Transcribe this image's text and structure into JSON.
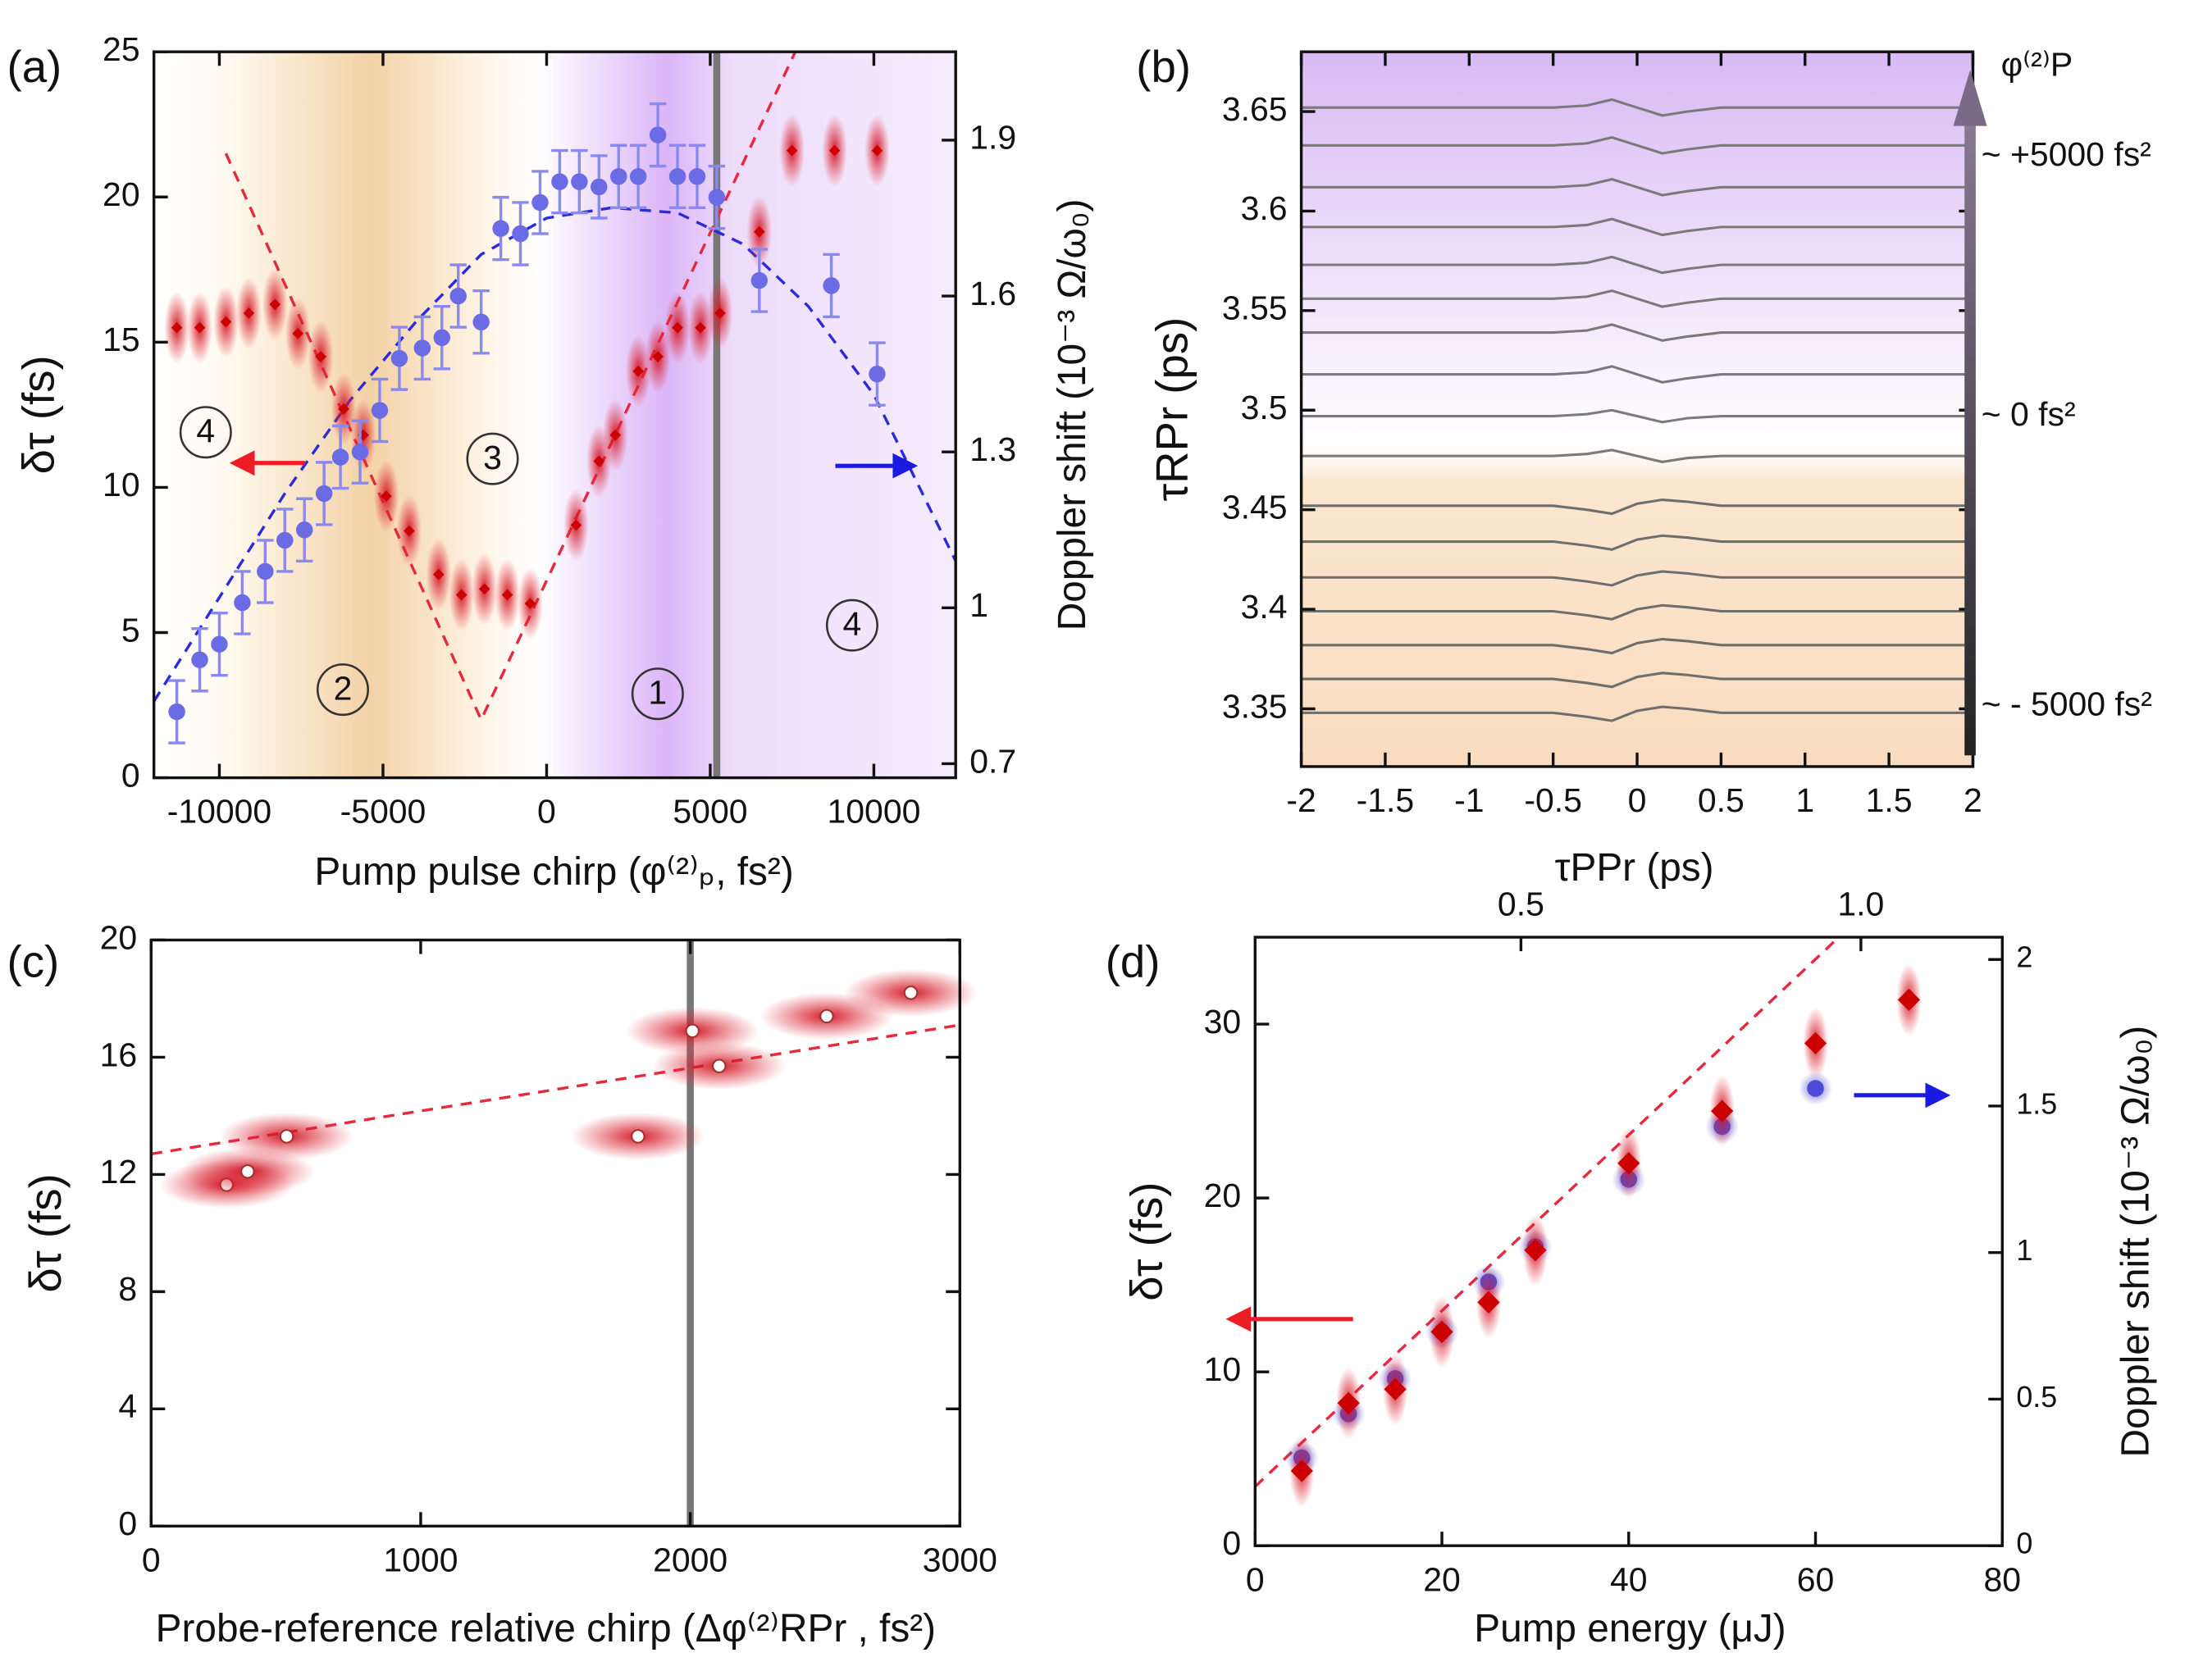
{
  "chart_data": [
    {
      "type": "scatter",
      "label": "(a)",
      "xlabel": "Pump pulse chirp (φ⁽²⁾ₚ, fs²)",
      "ylabel": "δτ (fs)",
      "y2label": "Doppler shift (10⁻³ Ω/ω₀)",
      "xlim": [
        -12000,
        12500
      ],
      "ylim": [
        0,
        25
      ],
      "y2lim": [
        0.673,
        2.07
      ],
      "xticks": [
        -10000,
        -5000,
        0,
        5000,
        10000
      ],
      "yticks": [
        0,
        5,
        10,
        15,
        20,
        25
      ],
      "y2ticks": [
        0.7,
        1,
        1.3,
        1.6,
        1.9
      ],
      "vline": 5200,
      "annotations": [
        "4",
        "2",
        "3",
        "1",
        "4"
      ],
      "series": [
        {
          "marker": "line",
          "dash": true,
          "color": "#e8283c",
          "x": [
            -9800,
            -2000,
            7600
          ],
          "values": [
            21.5,
            2,
            25
          ]
        },
        {
          "marker": "line",
          "dash": true,
          "color": "#2b2bdd",
          "axis": "y2",
          "x": [
            -12000,
            -10000,
            -8000,
            -6000,
            -4000,
            -2000,
            0,
            2000,
            4000,
            6000,
            8000,
            10000,
            12500
          ],
          "values": [
            0.82,
            1.02,
            1.22,
            1.4,
            1.55,
            1.68,
            1.75,
            1.77,
            1.76,
            1.7,
            1.58,
            1.41,
            1.09
          ]
        },
        {
          "marker": "diamond",
          "glow": "vertical",
          "color": "#cc0000",
          "x": [
            -11300,
            -10600,
            -9800,
            -9100,
            -8300,
            -7600,
            -6900,
            -6200,
            -5600,
            -4900,
            -4200,
            -3300,
            -2600,
            -1900,
            -1200,
            -500,
            900,
            1600,
            2100,
            2800,
            3400,
            4000,
            4700,
            5300,
            6500,
            7500,
            8800,
            10100
          ],
          "values": [
            15.5,
            15.5,
            15.7,
            16,
            16.3,
            15.3,
            14.5,
            12.7,
            11.8,
            9.7,
            8.5,
            7,
            6.3,
            6.5,
            6.3,
            6,
            8.7,
            10.9,
            11.8,
            14,
            14.5,
            15.5,
            15.5,
            16,
            18.8,
            21.6,
            21.6,
            21.6
          ]
        },
        {
          "marker": "circle",
          "color": "#6b6be6",
          "axis": "y2",
          "x": [
            -11300,
            -10600,
            -10000,
            -9300,
            -8600,
            -8000,
            -7400,
            -6800,
            -6300,
            -5700,
            -5100,
            -4500,
            -3800,
            -3200,
            -2700,
            -2000,
            -1400,
            -800,
            -200,
            400,
            1000,
            1600,
            2200,
            2800,
            3400,
            4000,
            4600,
            5200,
            6500,
            8700,
            10100
          ],
          "values": [
            0.8,
            0.9,
            0.93,
            1.01,
            1.07,
            1.13,
            1.15,
            1.22,
            1.29,
            1.3,
            1.38,
            1.48,
            1.5,
            1.52,
            1.6,
            1.55,
            1.73,
            1.72,
            1.78,
            1.82,
            1.82,
            1.81,
            1.83,
            1.83,
            1.91,
            1.83,
            1.83,
            1.79,
            1.63,
            1.62,
            1.45
          ],
          "errors": [
            0.06,
            0.06,
            0.06,
            0.06,
            0.06,
            0.06,
            0.06,
            0.06,
            0.06,
            0.06,
            0.06,
            0.06,
            0.06,
            0.06,
            0.06,
            0.06,
            0.06,
            0.06,
            0.06,
            0.06,
            0.06,
            0.06,
            0.06,
            0.06,
            0.06,
            0.06,
            0.06,
            0.06,
            0.06,
            0.06,
            0.06
          ]
        }
      ]
    },
    {
      "type": "line",
      "label": "(b)",
      "xlabel": "τPPr (ps)",
      "ylabel": "τRPr (ps)",
      "xlim": [
        -2,
        2
      ],
      "ylim": [
        3.321,
        3.68
      ],
      "xticks": [
        -2,
        -1.5,
        -1,
        -0.5,
        0,
        0.5,
        1,
        1.5,
        2
      ],
      "yticks": [
        3.35,
        3.4,
        3.45,
        3.5,
        3.55,
        3.6,
        3.65
      ],
      "annotations": [
        "φ⁽²⁾P",
        "~ +5000 fs²",
        "~ 0 fs²",
        "~ - 5000 fs²"
      ],
      "x": [
        -2,
        -1,
        -0.5,
        -0.3,
        -0.15,
        0,
        0.15,
        0.3,
        0.5,
        1,
        2
      ],
      "series": [
        {
          "color": "#7a7a7a",
          "values": [
            3.652,
            3.652,
            3.652,
            3.653,
            3.656,
            3.652,
            3.648,
            3.65,
            3.652,
            3.652,
            3.652
          ]
        },
        {
          "color": "#7a7a7a",
          "values": [
            3.633,
            3.633,
            3.633,
            3.634,
            3.637,
            3.633,
            3.629,
            3.631,
            3.633,
            3.633,
            3.633
          ]
        },
        {
          "color": "#7a7a7a",
          "values": [
            3.612,
            3.612,
            3.612,
            3.613,
            3.616,
            3.612,
            3.608,
            3.61,
            3.612,
            3.612,
            3.612
          ]
        },
        {
          "color": "#7a7a7a",
          "values": [
            3.592,
            3.592,
            3.592,
            3.593,
            3.596,
            3.592,
            3.588,
            3.59,
            3.592,
            3.592,
            3.592
          ]
        },
        {
          "color": "#7a7a7a",
          "values": [
            3.573,
            3.573,
            3.573,
            3.574,
            3.577,
            3.573,
            3.569,
            3.571,
            3.573,
            3.573,
            3.573
          ]
        },
        {
          "color": "#7a7a7a",
          "values": [
            3.556,
            3.556,
            3.556,
            3.557,
            3.56,
            3.556,
            3.552,
            3.554,
            3.556,
            3.556,
            3.556
          ]
        },
        {
          "color": "#7a7a7a",
          "values": [
            3.539,
            3.539,
            3.539,
            3.54,
            3.543,
            3.539,
            3.535,
            3.537,
            3.539,
            3.539,
            3.539
          ]
        },
        {
          "color": "#7a7a7a",
          "values": [
            3.518,
            3.518,
            3.518,
            3.519,
            3.522,
            3.518,
            3.514,
            3.516,
            3.518,
            3.518,
            3.518
          ]
        },
        {
          "color": "#7a7a7a",
          "values": [
            3.497,
            3.497,
            3.497,
            3.498,
            3.5,
            3.497,
            3.494,
            3.496,
            3.497,
            3.497,
            3.497
          ]
        },
        {
          "color": "#7a7a7a",
          "values": [
            3.477,
            3.477,
            3.477,
            3.478,
            3.48,
            3.477,
            3.474,
            3.476,
            3.477,
            3.477,
            3.477
          ]
        },
        {
          "color": "#6e6e6e",
          "values": [
            3.452,
            3.452,
            3.452,
            3.45,
            3.448,
            3.453,
            3.455,
            3.454,
            3.452,
            3.452,
            3.452
          ]
        },
        {
          "color": "#6e6e6e",
          "values": [
            3.434,
            3.434,
            3.434,
            3.432,
            3.43,
            3.435,
            3.437,
            3.436,
            3.434,
            3.434,
            3.434
          ]
        },
        {
          "color": "#6e6e6e",
          "values": [
            3.416,
            3.416,
            3.416,
            3.414,
            3.412,
            3.417,
            3.419,
            3.418,
            3.416,
            3.416,
            3.416
          ]
        },
        {
          "color": "#6e6e6e",
          "values": [
            3.399,
            3.399,
            3.399,
            3.397,
            3.395,
            3.4,
            3.402,
            3.401,
            3.399,
            3.399,
            3.399
          ]
        },
        {
          "color": "#6e6e6e",
          "values": [
            3.382,
            3.382,
            3.382,
            3.38,
            3.378,
            3.383,
            3.385,
            3.384,
            3.382,
            3.382,
            3.382
          ]
        },
        {
          "color": "#6e6e6e",
          "values": [
            3.365,
            3.365,
            3.365,
            3.363,
            3.361,
            3.366,
            3.368,
            3.367,
            3.365,
            3.365,
            3.365
          ]
        },
        {
          "color": "#6e6e6e",
          "values": [
            3.348,
            3.348,
            3.348,
            3.346,
            3.344,
            3.349,
            3.351,
            3.35,
            3.348,
            3.348,
            3.348
          ]
        }
      ]
    },
    {
      "type": "scatter",
      "label": "(c)",
      "xlabel": "Probe-reference relative chirp (Δφ⁽²⁾RPr , fs²)",
      "ylabel": "δτ (fs)",
      "xlim": [
        0,
        3000
      ],
      "ylim": [
        0,
        20
      ],
      "xticks": [
        0,
        1000,
        2000,
        3000
      ],
      "yticks": [
        0,
        4,
        8,
        12,
        16,
        20
      ],
      "vline": 2000,
      "series": [
        {
          "marker": "line",
          "dash": true,
          "color": "#e8283c",
          "x": [
            0,
            3000
          ],
          "values": [
            12.7,
            17.1
          ]
        },
        {
          "marker": "circle",
          "glow": "horizontal",
          "color": "#ffffff",
          "x": [
            280,
            358,
            503,
            1806,
            2008,
            2107,
            2506,
            2818
          ],
          "values": [
            11.65,
            12.1,
            13.3,
            13.3,
            16.9,
            15.7,
            17.4,
            18.2
          ]
        }
      ]
    },
    {
      "type": "scatter",
      "label": "(d)",
      "xlabel": "Pump energy (μJ)",
      "ylabel": "δτ (fs)",
      "y2label": "Doppler shift (10⁻³ Ω/ω₀)",
      "xlim": [
        0,
        80
      ],
      "ylim": [
        0,
        35
      ],
      "y2lim": [
        0,
        2.076
      ],
      "x2lim": [
        0.109,
        1.208
      ],
      "xticks": [
        0,
        20,
        40,
        60,
        80
      ],
      "yticks": [
        0,
        10,
        20,
        30
      ],
      "y2ticks": [
        0,
        0.5,
        1,
        1.5,
        2
      ],
      "x2ticks": [
        0.5,
        {
          "value": 1,
          "label": "1.0"
        }
      ],
      "series": [
        {
          "marker": "line",
          "dash": true,
          "color": "#e8283c",
          "x": [
            0,
            62.5
          ],
          "values": [
            3.4,
            35
          ]
        },
        {
          "marker": "circle",
          "glow": "round",
          "color": "#4b4bd6",
          "axis": "y2",
          "x": [
            5,
            10,
            15,
            20,
            25,
            30,
            40,
            50,
            60
          ],
          "values": [
            0.3,
            0.45,
            0.57,
            0.73,
            0.9,
            1.02,
            1.25,
            1.43,
            1.56
          ]
        },
        {
          "marker": "diamond",
          "glow": "vertical",
          "color": "#cc0000",
          "x": [
            5,
            10,
            15,
            20,
            25,
            30,
            40,
            50,
            60,
            70
          ],
          "values": [
            4.3,
            8.2,
            9,
            12.3,
            14,
            17,
            22,
            25,
            28.9,
            31.4
          ]
        }
      ]
    }
  ]
}
